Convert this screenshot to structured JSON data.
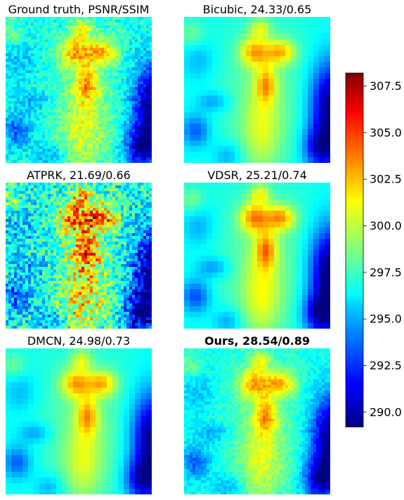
{
  "chart_data": {
    "type": "heatmap",
    "layout": "3x2 grid of temperature maps with shared colorbar",
    "panels": [
      {
        "id": "gt",
        "title": "Ground truth, PSNR/SSIM",
        "bold": false,
        "method": "Ground truth",
        "psnr": null,
        "ssim": null
      },
      {
        "id": "bicubic",
        "title": "Bicubic, 24.33/0.65",
        "bold": false,
        "method": "Bicubic",
        "psnr": 24.33,
        "ssim": 0.65
      },
      {
        "id": "atprk",
        "title": "ATPRK, 21.69/0.66",
        "bold": false,
        "method": "ATPRK",
        "psnr": 21.69,
        "ssim": 0.66
      },
      {
        "id": "vdsr",
        "title": "VDSR, 25.21/0.74",
        "bold": false,
        "method": "VDSR",
        "psnr": 25.21,
        "ssim": 0.74
      },
      {
        "id": "dmcn",
        "title": "DMCN, 24.98/0.73",
        "bold": false,
        "method": "DMCN",
        "psnr": 24.98,
        "ssim": 0.73
      },
      {
        "id": "ours",
        "title": "Ours, 28.54/0.89",
        "bold": true,
        "method": "Ours",
        "psnr": 28.54,
        "ssim": 0.89
      }
    ],
    "colorbar": {
      "colormap": "jet",
      "vmin": 289.2,
      "vmax": 308.2,
      "ticks": [
        290.0,
        292.5,
        295.0,
        297.5,
        300.0,
        302.5,
        305.0,
        307.5
      ],
      "tick_labels": [
        "290.0",
        "292.5",
        "295.0",
        "297.5",
        "300.0",
        "302.5",
        "305.0",
        "307.5"
      ]
    }
  },
  "colors": {
    "background": "#ffffff",
    "text": "#000000"
  }
}
